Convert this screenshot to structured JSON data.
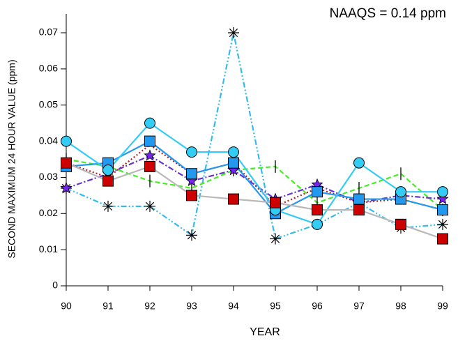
{
  "chart_data": {
    "type": "line",
    "title": "NAAQS = 0.14 ppm",
    "x_label": "YEAR",
    "y_label": "SECOND MAXIMUM 24 HOUR VALUE (ppm)",
    "x": [
      90,
      91,
      92,
      93,
      94,
      95,
      96,
      97,
      98,
      99
    ],
    "xlim": [
      90,
      99
    ],
    "xticks": [
      90,
      91,
      92,
      93,
      94,
      95,
      96,
      97,
      98,
      99
    ],
    "ylim": [
      0,
      0.07
    ],
    "yticks": [
      0,
      0.01,
      0.02,
      0.03,
      0.04,
      0.05,
      0.06,
      0.07
    ],
    "grid": false,
    "series": [
      {
        "color": "#2299cc",
        "line_color": "#33bbee",
        "dash": "dashdot2",
        "marker": "asterisk",
        "values": [
          0.027,
          0.022,
          0.022,
          0.014,
          0.07,
          0.013,
          0.017,
          0.023,
          0.016,
          0.017
        ]
      },
      {
        "color": "#000000",
        "line_color": "#44ee22",
        "dash": "dashed",
        "marker": "bar",
        "values": [
          0.035,
          0.033,
          0.029,
          0.027,
          0.032,
          0.033,
          0.023,
          0.027,
          0.031,
          0.021
        ]
      },
      {
        "color": "#aa2222",
        "line_color": "#aa2222",
        "dash": "dotted",
        "marker": "none",
        "values": [
          0.034,
          0.03,
          0.039,
          0.031,
          0.034,
          0.022,
          0.027,
          0.023,
          0.024,
          0.021
        ]
      },
      {
        "color": "#7722ee",
        "line_color": "#6633cc",
        "dash": "dashdot",
        "marker": "star",
        "values": [
          0.027,
          0.031,
          0.036,
          0.029,
          0.032,
          0.024,
          0.028,
          0.023,
          0.025,
          0.024
        ]
      },
      {
        "color": "#2299ee",
        "line_color": "#2299ee",
        "dash": "solid",
        "marker": "square",
        "values": [
          0.033,
          0.034,
          0.04,
          0.031,
          0.034,
          0.02,
          0.026,
          0.024,
          0.024,
          0.021
        ]
      },
      {
        "color": "#33ccf5",
        "line_color": "#33ccf5",
        "dash": "solid",
        "marker": "circle",
        "values": [
          0.04,
          0.032,
          0.045,
          0.037,
          0.037,
          0.021,
          0.017,
          0.034,
          0.026,
          0.026
        ]
      },
      {
        "color": "#cc0000",
        "line_color": "#b8b8b8",
        "dash": "solid",
        "marker": "square",
        "values": [
          0.034,
          0.029,
          0.033,
          0.025,
          0.024,
          0.023,
          0.021,
          0.021,
          0.017,
          0.013
        ]
      }
    ]
  }
}
